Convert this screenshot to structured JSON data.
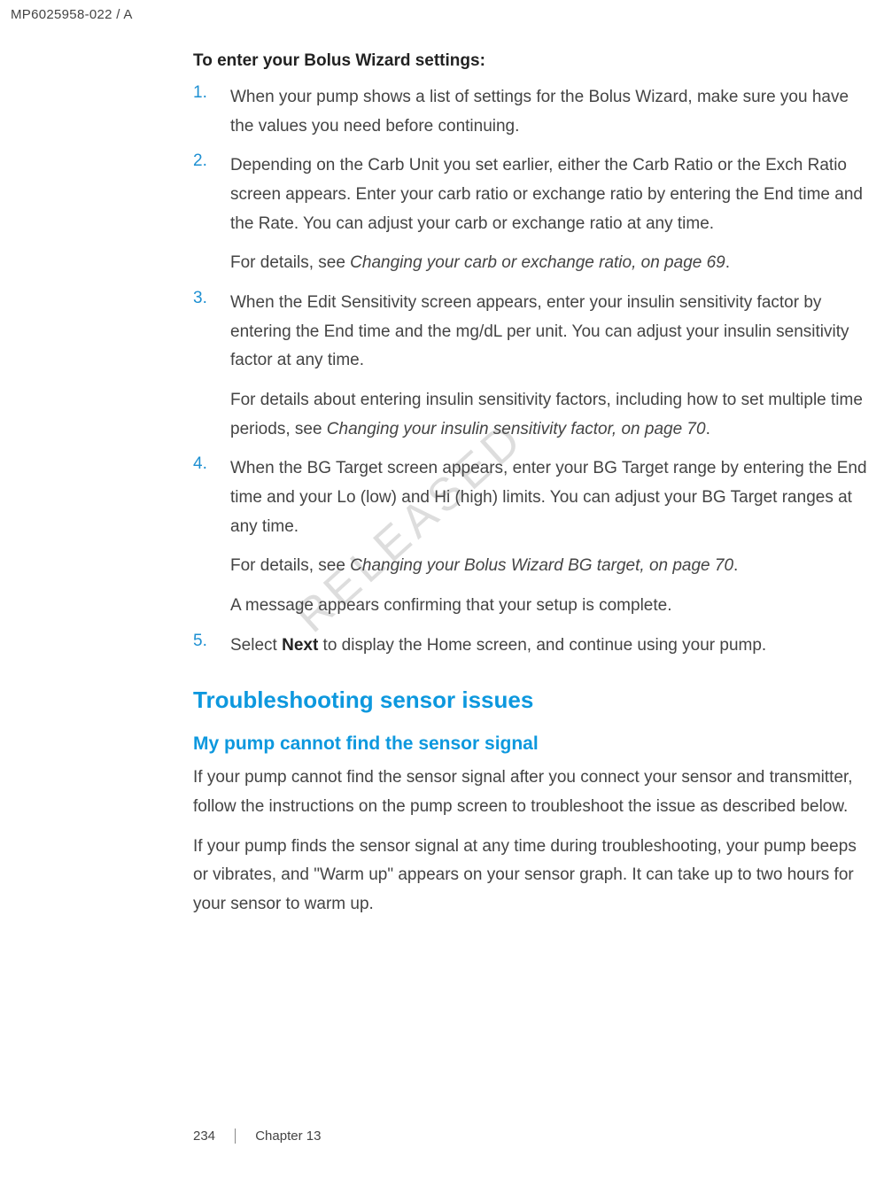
{
  "header": {
    "doc_code": "MP6025958-022 / A"
  },
  "intro": "To enter your Bolus Wizard settings:",
  "steps": [
    {
      "num": "1.",
      "paras": [
        {
          "plain": "When your pump shows a list of settings for the Bolus Wizard, make sure you have the values you need before continuing."
        }
      ]
    },
    {
      "num": "2.",
      "paras": [
        {
          "plain": "Depending on the Carb Unit you set earlier, either the Carb Ratio or the Exch Ratio screen appears. Enter your carb ratio or exchange ratio by entering the End time and the Rate. You can adjust your carb or exchange ratio at any time."
        },
        {
          "lead": "For details, see ",
          "ital": "Changing your carb or exchange ratio, on page 69",
          "tail": "."
        }
      ]
    },
    {
      "num": "3.",
      "paras": [
        {
          "plain": "When the Edit Sensitivity screen appears, enter your insulin sensitivity factor by entering the End time and the mg/dL per unit. You can adjust your insulin sensitivity factor at any time."
        },
        {
          "lead": "For details about entering insulin sensitivity factors, including how to set multiple time periods, see ",
          "ital": "Changing your insulin sensitivity factor, on page 70",
          "tail": "."
        }
      ]
    },
    {
      "num": "4.",
      "paras": [
        {
          "plain": "When the BG Target screen appears, enter your BG Target range by entering the End time and your Lo (low) and Hi (high) limits. You can adjust your BG Target ranges at any time."
        },
        {
          "lead": "For details, see ",
          "ital": "Changing your Bolus Wizard BG target, on page 70",
          "tail": "."
        },
        {
          "plain": "A message appears confirming that your setup is complete."
        }
      ]
    },
    {
      "num": "5.",
      "paras": [
        {
          "lead": "Select ",
          "bold": "Next",
          "tail": " to display the Home screen, and continue using your pump."
        }
      ]
    }
  ],
  "h1": "Troubleshooting sensor issues",
  "h2": "My pump cannot find the sensor signal",
  "body_after": [
    "If your pump cannot find the sensor signal after you connect your sensor and transmitter, follow the instructions on the pump screen to troubleshoot the issue as described below.",
    "If your pump finds the sensor signal at any time during troubleshooting, your pump beeps or vibrates, and \"Warm up\" appears on your sensor graph. It can take up to two hours for your sensor to warm up."
  ],
  "watermark": "RELEASED",
  "footer": {
    "page_num": "234",
    "chapter": "Chapter 13"
  }
}
